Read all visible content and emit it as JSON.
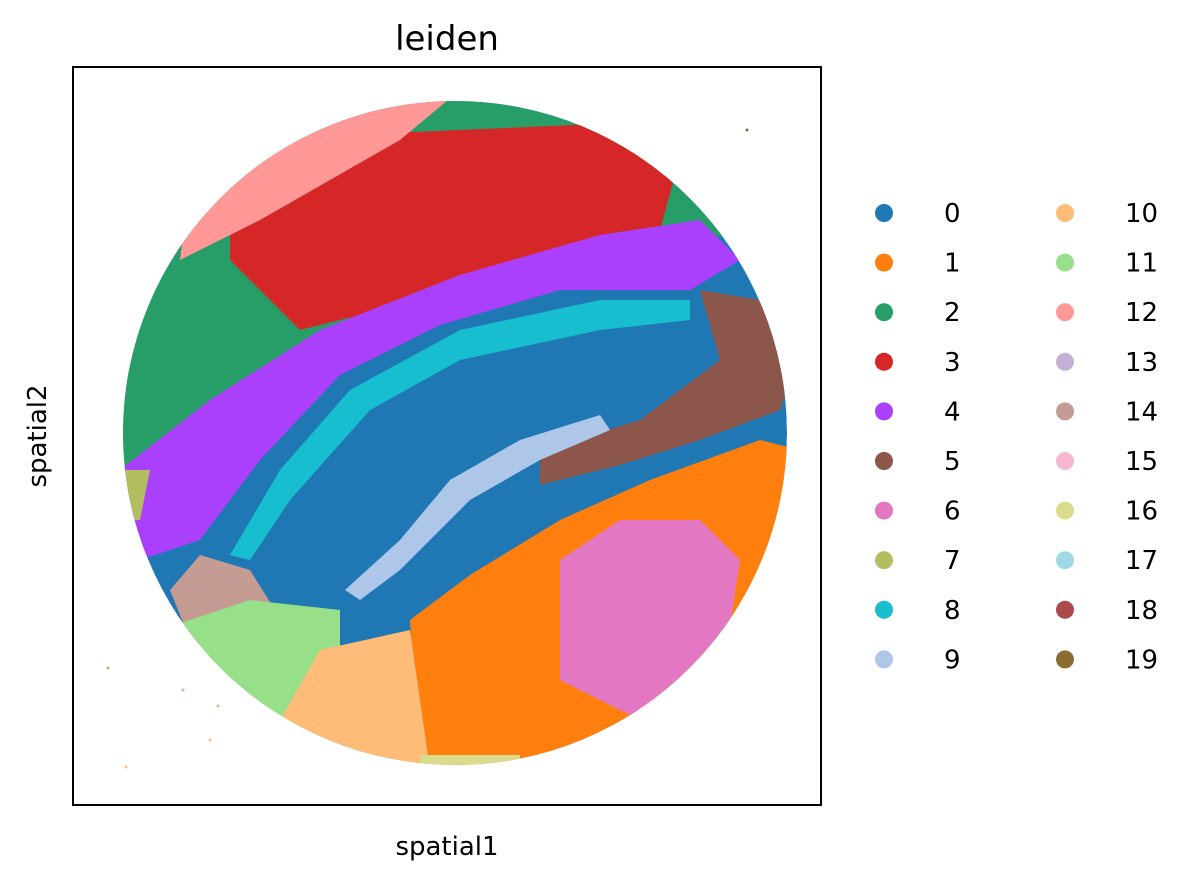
{
  "chart_data": {
    "type": "scatter",
    "title": "leiden",
    "xlabel": "spatial1",
    "ylabel": "spatial2",
    "grid": false,
    "axis_ticks": false,
    "legend_placement": "right, outside plot, 2 columns",
    "legend": [
      {
        "label": "0",
        "color": "#1f77b4"
      },
      {
        "label": "1",
        "color": "#ff7f0e"
      },
      {
        "label": "2",
        "color": "#279e68"
      },
      {
        "label": "3",
        "color": "#d62728"
      },
      {
        "label": "4",
        "color": "#aa40fc"
      },
      {
        "label": "5",
        "color": "#8c564b"
      },
      {
        "label": "6",
        "color": "#e377c2"
      },
      {
        "label": "7",
        "color": "#b5bd61"
      },
      {
        "label": "8",
        "color": "#17becf"
      },
      {
        "label": "9",
        "color": "#aec7e8"
      },
      {
        "label": "10",
        "color": "#ffbb78"
      },
      {
        "label": "11",
        "color": "#98df8a"
      },
      {
        "label": "12",
        "color": "#ff9896"
      },
      {
        "label": "13",
        "color": "#c5b0d5"
      },
      {
        "label": "14",
        "color": "#c49c94"
      },
      {
        "label": "15",
        "color": "#f7b6d2"
      },
      {
        "label": "16",
        "color": "#dbdb8d"
      },
      {
        "label": "17",
        "color": "#9edae5"
      },
      {
        "label": "18",
        "color": "#ad494a"
      },
      {
        "label": "19",
        "color": "#8c6d31"
      }
    ]
  }
}
